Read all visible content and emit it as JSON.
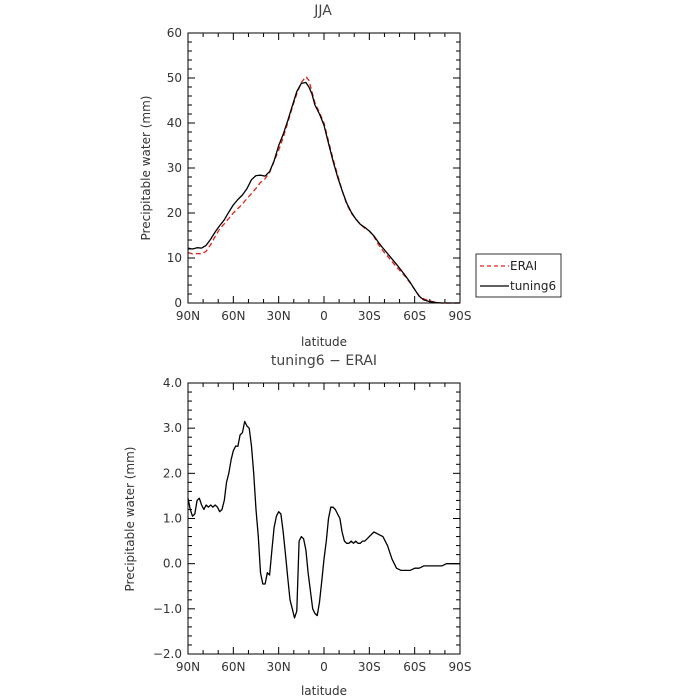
{
  "chart_data": [
    {
      "type": "line",
      "title": "JJA",
      "xlabel": "latitude",
      "ylabel": "Precipitable water (mm)",
      "xlim": [
        90,
        -90
      ],
      "ylim": [
        0,
        60
      ],
      "x_ticks": [
        90,
        60,
        30,
        0,
        -30,
        -60,
        -90
      ],
      "x_tick_labels": [
        "90N",
        "60N",
        "30N",
        "0",
        "30S",
        "60S",
        "90S"
      ],
      "y_ticks": [
        0,
        10,
        20,
        30,
        40,
        50,
        60
      ],
      "y_tick_labels": [
        "0",
        "10",
        "20",
        "30",
        "40",
        "50",
        "60"
      ],
      "grid": false,
      "legend": {
        "position": "outside-right",
        "entries": [
          "ERAI",
          "tuning6"
        ]
      },
      "series": [
        {
          "name": "ERAI",
          "color": "#e0211b",
          "dash": "dashed",
          "x": [
            90,
            87,
            84,
            81,
            78,
            75,
            72,
            69,
            66,
            63,
            60,
            57,
            54,
            51,
            48,
            45,
            42,
            39,
            36,
            33,
            30,
            27,
            24,
            21,
            18,
            15,
            12,
            10,
            8,
            6,
            3,
            0,
            -3,
            -6,
            -9,
            -12,
            -15,
            -18,
            -21,
            -24,
            -27,
            -30,
            -33,
            -36,
            -39,
            -42,
            -45,
            -48,
            -51,
            -54,
            -57,
            -60,
            -63,
            -66,
            -69,
            -72,
            -75,
            -78,
            -81,
            -84,
            -87,
            -90
          ],
          "y": [
            11.2,
            10.9,
            11.0,
            10.9,
            11.5,
            13.0,
            14.8,
            16.5,
            17.6,
            18.8,
            20.0,
            21.0,
            22.0,
            23.2,
            24.3,
            25.5,
            26.8,
            27.6,
            29.0,
            31.5,
            34.0,
            36.8,
            40.0,
            43.5,
            46.5,
            49.0,
            50.3,
            49.5,
            47.0,
            44.5,
            42.3,
            40.0,
            36.0,
            32.0,
            28.5,
            25.0,
            22.0,
            20.0,
            18.7,
            17.5,
            16.6,
            16.0,
            14.8,
            13.0,
            11.6,
            10.4,
            9.2,
            8.0,
            6.9,
            5.8,
            4.5,
            3.0,
            1.6,
            0.9,
            0.6,
            0.3,
            0.05,
            0.0,
            0.0,
            0.0,
            0.0,
            0.0
          ]
        },
        {
          "name": "tuning6",
          "color": "#000000",
          "dash": "solid",
          "x": [
            90,
            87,
            84,
            81,
            78,
            75,
            72,
            69,
            66,
            63,
            60,
            57,
            54,
            51,
            48,
            45,
            42,
            39,
            36,
            33,
            30,
            27,
            24,
            21,
            18,
            15,
            12,
            10,
            8,
            6,
            3,
            0,
            -3,
            -6,
            -9,
            -12,
            -15,
            -18,
            -21,
            -24,
            -27,
            -30,
            -33,
            -36,
            -39,
            -42,
            -45,
            -48,
            -51,
            -54,
            -57,
            -60,
            -63,
            -66,
            -69,
            -72,
            -75,
            -78,
            -81,
            -84,
            -87,
            -90
          ],
          "y": [
            12.2,
            12.0,
            12.3,
            12.2,
            12.8,
            14.2,
            15.8,
            17.2,
            18.5,
            20.2,
            21.8,
            23.0,
            24.0,
            25.4,
            27.4,
            28.3,
            28.4,
            28.2,
            29.2,
            31.6,
            35.0,
            37.5,
            40.5,
            43.8,
            47.0,
            48.8,
            49.0,
            48.0,
            46.5,
            44.0,
            42.0,
            39.5,
            35.5,
            31.5,
            28.0,
            25.0,
            22.2,
            20.2,
            18.7,
            17.5,
            16.8,
            16.0,
            14.9,
            13.5,
            12.2,
            11.0,
            9.8,
            8.6,
            7.3,
            6.0,
            4.6,
            3.0,
            1.5,
            0.7,
            0.4,
            0.2,
            0.1,
            0.0,
            0.0,
            0.0,
            0.0,
            0.0
          ]
        }
      ]
    },
    {
      "type": "line",
      "title": "tuning6 − ERAI",
      "xlabel": "latitude",
      "ylabel": "Precipitable water (mm)",
      "xlim": [
        90,
        -90
      ],
      "ylim": [
        -2.0,
        4.0
      ],
      "x_ticks": [
        90,
        60,
        30,
        0,
        -30,
        -60,
        -90
      ],
      "x_tick_labels": [
        "90N",
        "60N",
        "30N",
        "0",
        "30S",
        "60S",
        "90S"
      ],
      "y_ticks": [
        -2.0,
        -1.0,
        0.0,
        1.0,
        2.0,
        3.0,
        4.0
      ],
      "y_tick_labels": [
        "−2.0",
        "−1.0",
        "0.0",
        "1.0",
        "2.0",
        "3.0",
        "4.0"
      ],
      "grid": false,
      "series": [
        {
          "color": "#000000",
          "x": [
            90,
            88.5,
            87,
            85.5,
            84,
            82.5,
            81,
            79.5,
            78,
            76.5,
            75,
            73.5,
            72,
            70.5,
            69,
            67.5,
            66,
            64.5,
            63,
            61.5,
            60,
            58.5,
            57,
            55.5,
            54,
            52.5,
            51,
            49.5,
            48,
            46.5,
            45,
            43.5,
            42,
            40.5,
            39,
            37.5,
            36,
            34.5,
            33,
            31.5,
            30,
            28.5,
            27,
            25.5,
            24,
            22.5,
            21,
            19.5,
            18,
            16.5,
            15,
            13.5,
            12,
            10.5,
            9,
            7.5,
            6,
            4.5,
            3,
            1.5,
            0,
            -1.5,
            -3,
            -4.5,
            -6,
            -7.5,
            -9,
            -10.5,
            -12,
            -13.5,
            -15,
            -16.5,
            -18,
            -19.5,
            -21,
            -22.5,
            -24,
            -25.5,
            -27,
            -28.5,
            -30,
            -33,
            -36,
            -39,
            -42,
            -45,
            -48,
            -51,
            -54,
            -57,
            -60,
            -63,
            -66,
            -69,
            -72,
            -75,
            -78,
            -81,
            -84,
            -87,
            -90
          ],
          "y": [
            1.45,
            1.2,
            1.05,
            1.1,
            1.4,
            1.45,
            1.3,
            1.2,
            1.3,
            1.25,
            1.3,
            1.25,
            1.3,
            1.25,
            1.15,
            1.2,
            1.4,
            1.8,
            2.0,
            2.3,
            2.5,
            2.6,
            2.6,
            2.85,
            2.9,
            3.15,
            3.05,
            3.0,
            2.6,
            2.0,
            1.2,
            0.6,
            -0.2,
            -0.45,
            -0.45,
            -0.2,
            -0.25,
            0.3,
            0.8,
            1.05,
            1.15,
            1.1,
            0.7,
            0.2,
            -0.3,
            -0.8,
            -1.0,
            -1.2,
            -1.05,
            0.5,
            0.6,
            0.55,
            0.3,
            -0.2,
            -0.6,
            -1.0,
            -1.1,
            -1.15,
            -0.85,
            -0.4,
            0.1,
            0.5,
            1.0,
            1.25,
            1.25,
            1.2,
            1.1,
            1.0,
            0.7,
            0.5,
            0.45,
            0.45,
            0.5,
            0.45,
            0.5,
            0.45,
            0.45,
            0.5,
            0.5,
            0.55,
            0.6,
            0.7,
            0.65,
            0.6,
            0.4,
            0.1,
            -0.1,
            -0.15,
            -0.15,
            -0.15,
            -0.1,
            -0.1,
            -0.05,
            -0.05,
            -0.05,
            -0.05,
            -0.05,
            0.0,
            0.0,
            0.0,
            0.0
          ]
        }
      ]
    }
  ]
}
